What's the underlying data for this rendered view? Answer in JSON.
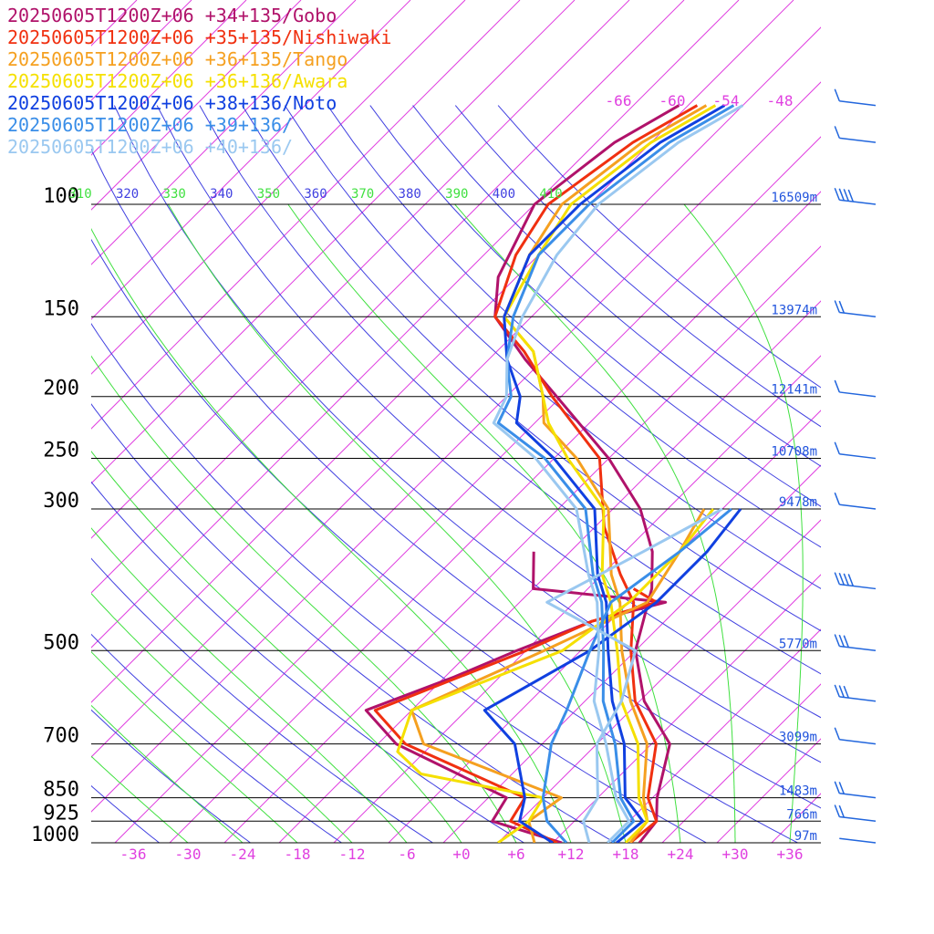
{
  "chart_data": {
    "type": "line",
    "title": "",
    "xlabel": "",
    "ylabel": "",
    "xlim": [
      -40,
      40
    ],
    "pressure_range": [
      1000,
      70
    ],
    "temperature_ticks": [
      "-36",
      "-30",
      "-24",
      "-18",
      "-12",
      "-6",
      "+0",
      "+6",
      "+12",
      "+18",
      "+24",
      "+30",
      "+36"
    ],
    "pressure_levels": [
      {
        "label": "100",
        "height": "16509m"
      },
      {
        "label": "150",
        "height": "13974m"
      },
      {
        "label": "200",
        "height": "12141m"
      },
      {
        "label": "250",
        "height": "10708m"
      },
      {
        "label": "300",
        "height": "9478m"
      },
      {
        "label": "500",
        "height": "5770m"
      },
      {
        "label": "700",
        "height": "3099m"
      },
      {
        "label": "850",
        "height": "1483m"
      },
      {
        "label": "925",
        "height": "766m"
      },
      {
        "label": "1000",
        "height": "97m"
      }
    ],
    "theta_labels": [
      "310",
      "320",
      "330",
      "340",
      "350",
      "360",
      "370",
      "380",
      "390",
      "400",
      "410"
    ],
    "upper_temperature_labels": [
      "-66",
      "-60",
      "-54",
      "-48"
    ],
    "colors": {
      "isobar": "#000000",
      "isotherm": "#e040e0",
      "dry_adiabat": "#4040e0",
      "moist_adiabat": "#40e040",
      "height_label": "#2255dd",
      "wind_barb": "#2266dd"
    },
    "series": [
      {
        "name": "20250605T1200Z+06 +34+135/Gobo",
        "color": "#b0126a",
        "temperature": [
          [
            1000,
            19.5
          ],
          [
            925,
            19.0
          ],
          [
            850,
            16.5
          ],
          [
            700,
            12.0
          ],
          [
            600,
            4.5
          ],
          [
            500,
            -2.0
          ],
          [
            400,
            -7.0
          ],
          [
            350,
            -11.0
          ],
          [
            300,
            -17.0
          ],
          [
            250,
            -26.0
          ],
          [
            200,
            -38.5
          ],
          [
            175,
            -46.0
          ],
          [
            150,
            -54.0
          ],
          [
            130,
            -58.0
          ],
          [
            100,
            -62.0
          ],
          [
            80,
            -60.0
          ],
          [
            70,
            -57.0
          ]
        ],
        "dewpoint": [
          [
            1000,
            11.0
          ],
          [
            925,
            1.0
          ],
          [
            850,
            0.0
          ],
          [
            700,
            -18.0
          ],
          [
            620,
            -25.0
          ],
          [
            550,
            -19.0
          ],
          [
            500,
            -15.0
          ],
          [
            450,
            -10.0
          ],
          [
            420,
            -4.0
          ],
          [
            400,
            -20.0
          ],
          [
            350,
            -24.0
          ]
        ]
      },
      {
        "name": "20250605T1200Z+06 +35+135/Nishiwaki",
        "color": "#f03010",
        "temperature": [
          [
            1000,
            18.5
          ],
          [
            925,
            19.0
          ],
          [
            850,
            15.5
          ],
          [
            700,
            10.5
          ],
          [
            600,
            3.5
          ],
          [
            500,
            -2.5
          ],
          [
            420,
            -7.5
          ],
          [
            380,
            -12.0
          ],
          [
            320,
            -19.0
          ],
          [
            250,
            -27.0
          ],
          [
            200,
            -39.0
          ],
          [
            170,
            -47.0
          ],
          [
            150,
            -54.0
          ],
          [
            120,
            -58.5
          ],
          [
            100,
            -60.5
          ],
          [
            80,
            -58.0
          ],
          [
            70,
            -55.0
          ]
        ],
        "dewpoint": [
          [
            1000,
            10.5
          ],
          [
            925,
            3.0
          ],
          [
            850,
            2.0
          ],
          [
            700,
            -17.0
          ],
          [
            620,
            -24.0
          ],
          [
            500,
            -14.0
          ],
          [
            450,
            -10.0
          ],
          [
            420,
            -5.0
          ],
          [
            400,
            -9.0
          ]
        ]
      },
      {
        "name": "20250605T1200Z+06 +36+135/Tango",
        "color": "#f5a020",
        "temperature": [
          [
            1000,
            18.5
          ],
          [
            925,
            18.0
          ],
          [
            850,
            15.0
          ],
          [
            700,
            9.5
          ],
          [
            600,
            3.0
          ],
          [
            500,
            -3.5
          ],
          [
            420,
            -9.0
          ],
          [
            380,
            -13.0
          ],
          [
            300,
            -20.5
          ],
          [
            250,
            -29.5
          ],
          [
            220,
            -37.0
          ],
          [
            200,
            -40.0
          ],
          [
            170,
            -46.0
          ],
          [
            150,
            -53.0
          ],
          [
            120,
            -57.0
          ],
          [
            100,
            -59.0
          ],
          [
            80,
            -57.0
          ],
          [
            70,
            -54.0
          ]
        ],
        "dewpoint": [
          [
            1000,
            8.0
          ],
          [
            925,
            5.0
          ],
          [
            850,
            6.0
          ],
          [
            700,
            -15.0
          ],
          [
            620,
            -20.0
          ],
          [
            500,
            -12.0
          ],
          [
            420,
            -6.0
          ],
          [
            350,
            -8.0
          ],
          [
            300,
            -10.0
          ]
        ]
      },
      {
        "name": "20250605T1200Z+06 +36+136/Awara",
        "color": "#f5e000",
        "temperature": [
          [
            1000,
            18.0
          ],
          [
            925,
            18.0
          ],
          [
            850,
            14.5
          ],
          [
            700,
            8.5
          ],
          [
            600,
            2.0
          ],
          [
            500,
            -4.0
          ],
          [
            420,
            -10.0
          ],
          [
            380,
            -14.0
          ],
          [
            300,
            -21.0
          ],
          [
            250,
            -30.5
          ],
          [
            220,
            -36.5
          ],
          [
            200,
            -40.0
          ],
          [
            170,
            -46.0
          ],
          [
            150,
            -53.0
          ],
          [
            120,
            -56.0
          ],
          [
            100,
            -58.0
          ],
          [
            80,
            -56.0
          ],
          [
            70,
            -53.0
          ]
        ],
        "dewpoint": [
          [
            1000,
            4.0
          ],
          [
            925,
            5.0
          ],
          [
            850,
            4.0
          ],
          [
            780,
            -12.0
          ],
          [
            720,
            -17.0
          ],
          [
            620,
            -20.0
          ],
          [
            500,
            -10.0
          ],
          [
            420,
            -8.0
          ],
          [
            350,
            -8.0
          ],
          [
            300,
            -9.0
          ]
        ]
      },
      {
        "name": "20250605T1200Z+06 +38+136/Noto",
        "color": "#1040e0",
        "temperature": [
          [
            1000,
            17.0
          ],
          [
            925,
            17.5
          ],
          [
            850,
            13.0
          ],
          [
            700,
            7.0
          ],
          [
            600,
            1.0
          ],
          [
            500,
            -5.0
          ],
          [
            420,
            -10.5
          ],
          [
            380,
            -14.5
          ],
          [
            300,
            -22.0
          ],
          [
            250,
            -32.0
          ],
          [
            220,
            -40.0
          ],
          [
            200,
            -42.5
          ],
          [
            175,
            -48.0
          ],
          [
            150,
            -53.0
          ],
          [
            120,
            -57.0
          ],
          [
            100,
            -57.0
          ],
          [
            80,
            -55.0
          ],
          [
            70,
            -52.0
          ]
        ],
        "dewpoint": [
          [
            1000,
            10.0
          ],
          [
            925,
            4.0
          ],
          [
            850,
            2.0
          ],
          [
            700,
            -5.0
          ],
          [
            620,
            -12.0
          ],
          [
            500,
            -7.0
          ],
          [
            420,
            -5.0
          ],
          [
            350,
            -5.0
          ],
          [
            300,
            -6.0
          ]
        ]
      },
      {
        "name": "20250605T1200Z+06 +39+136/",
        "color": "#3a8ee8",
        "temperature": [
          [
            1000,
            16.5
          ],
          [
            925,
            16.5
          ],
          [
            850,
            12.5
          ],
          [
            700,
            6.0
          ],
          [
            600,
            0.0
          ],
          [
            500,
            -5.5
          ],
          [
            420,
            -11.0
          ],
          [
            380,
            -15.0
          ],
          [
            300,
            -23.0
          ],
          [
            250,
            -33.0
          ],
          [
            220,
            -42.0
          ],
          [
            200,
            -43.5
          ],
          [
            175,
            -48.0
          ],
          [
            150,
            -52.0
          ],
          [
            120,
            -56.0
          ],
          [
            100,
            -56.0
          ],
          [
            80,
            -54.0
          ],
          [
            70,
            -51.0
          ]
        ],
        "dewpoint": [
          [
            1000,
            11.5
          ],
          [
            925,
            7.0
          ],
          [
            850,
            4.0
          ],
          [
            700,
            -1.0
          ],
          [
            620,
            -3.0
          ],
          [
            500,
            -7.0
          ],
          [
            420,
            -10.0
          ],
          [
            350,
            -8.0
          ],
          [
            300,
            -7.0
          ]
        ]
      },
      {
        "name": "20250605T1200Z+06 +40+136/",
        "color": "#9ac8f0",
        "temperature": [
          [
            1000,
            16.0
          ],
          [
            925,
            16.0
          ],
          [
            850,
            12.0
          ],
          [
            700,
            5.0
          ],
          [
            600,
            -1.0
          ],
          [
            500,
            -6.0
          ],
          [
            420,
            -11.5
          ],
          [
            380,
            -15.5
          ],
          [
            300,
            -24.0
          ],
          [
            250,
            -34.0
          ],
          [
            220,
            -42.5
          ],
          [
            200,
            -44.0
          ],
          [
            175,
            -48.0
          ],
          [
            150,
            -51.0
          ],
          [
            120,
            -54.0
          ],
          [
            100,
            -55.0
          ],
          [
            80,
            -53.0
          ],
          [
            70,
            -50.0
          ]
        ],
        "dewpoint": [
          [
            1000,
            14.0
          ],
          [
            925,
            11.0
          ],
          [
            850,
            10.0
          ],
          [
            700,
            4.0
          ],
          [
            600,
            2.0
          ],
          [
            500,
            -2.0
          ],
          [
            420,
            -17.0
          ],
          [
            350,
            -12.0
          ],
          [
            300,
            -8.0
          ]
        ]
      }
    ],
    "wind_barbs": [
      {
        "pressure": 1000,
        "barbs": 0
      },
      {
        "pressure": 925,
        "barbs": 2
      },
      {
        "pressure": 850,
        "barbs": 2
      },
      {
        "pressure": 700,
        "barbs": 1
      },
      {
        "pressure": 600,
        "barbs": 3
      },
      {
        "pressure": 500,
        "barbs": 3
      },
      {
        "pressure": 400,
        "barbs": 4
      },
      {
        "pressure": 300,
        "barbs": 1
      },
      {
        "pressure": 250,
        "barbs": 1
      },
      {
        "pressure": 200,
        "barbs": 1
      },
      {
        "pressure": 150,
        "barbs": 2
      },
      {
        "pressure": 100,
        "barbs": 4
      },
      {
        "pressure": 80,
        "barbs": 1
      },
      {
        "pressure": 70,
        "barbs": 1
      }
    ]
  }
}
